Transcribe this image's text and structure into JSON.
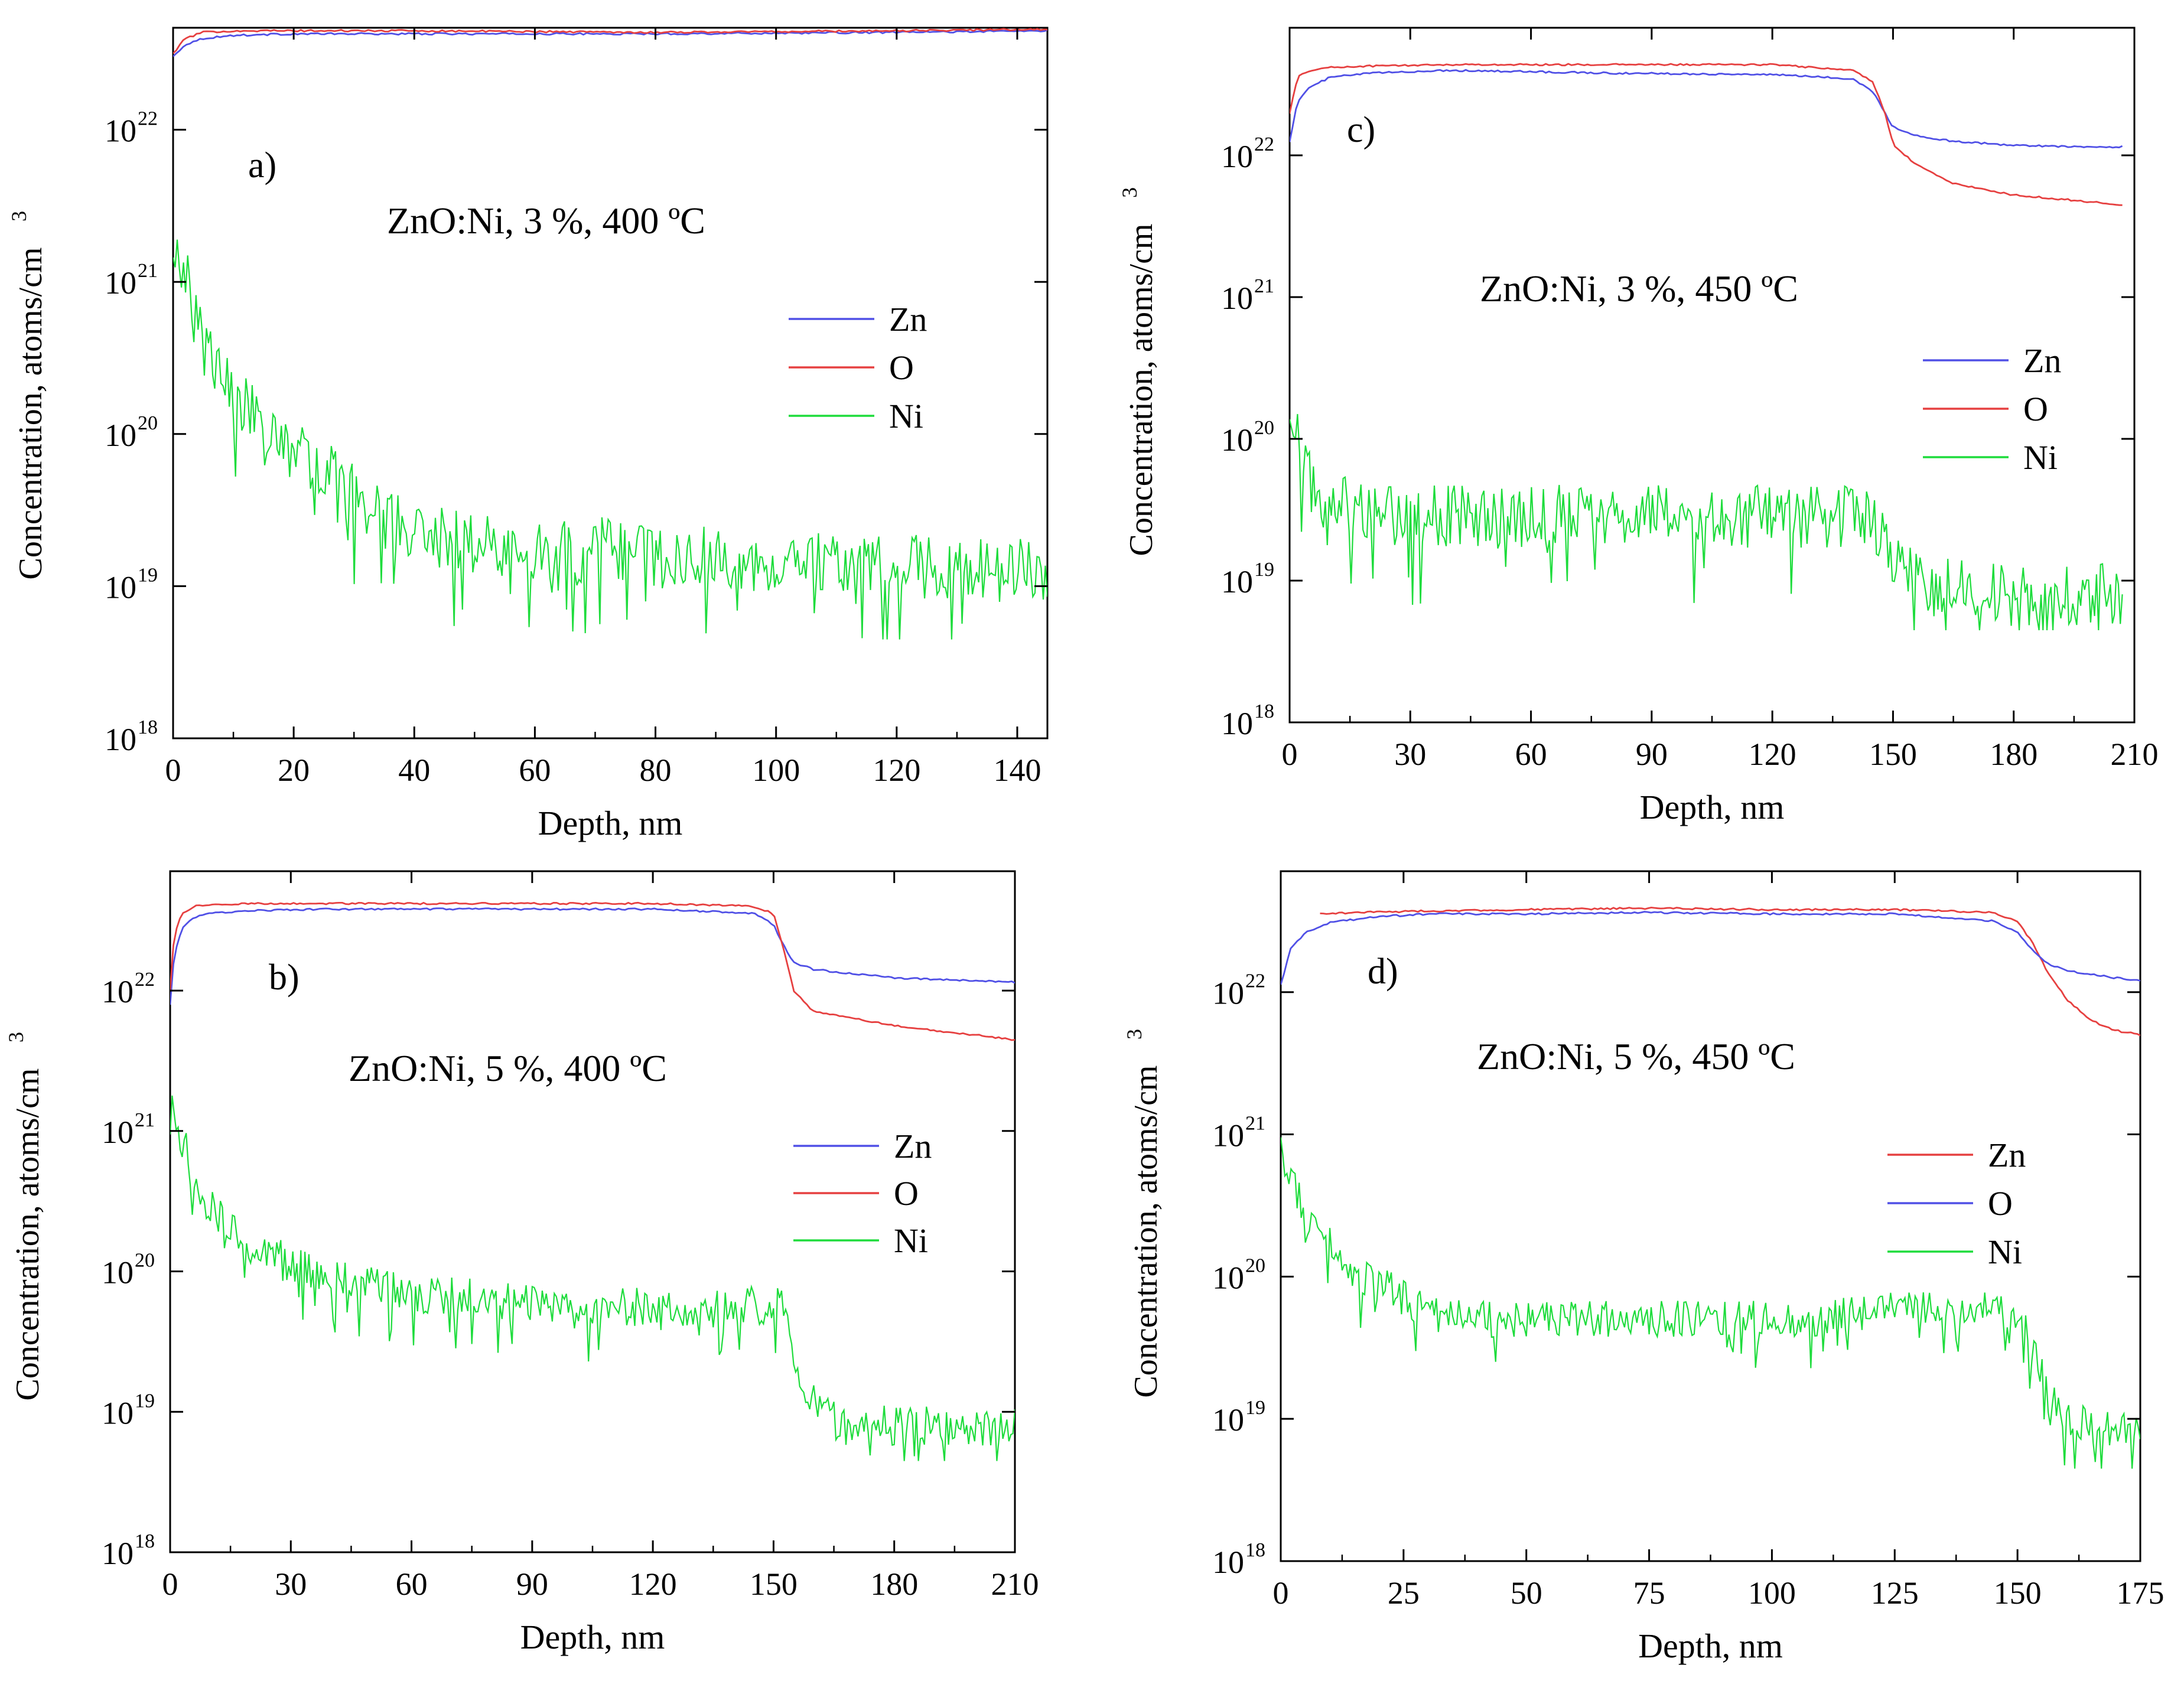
{
  "chart_data": [
    {
      "type": "line",
      "panel_label": "a)",
      "annotation": "ZnO:Ni, 3 %, 400 ºC",
      "xlabel": "Depth, nm",
      "ylabel": "Concentration, atoms/cm",
      "ylabel_sup": "3",
      "xlim": [
        0,
        145
      ],
      "xticks": [
        0,
        20,
        40,
        60,
        80,
        100,
        120,
        140
      ],
      "yscale": "log",
      "ylim_exp": [
        18,
        22.67
      ],
      "yticks": [
        {
          "base": "10",
          "exp": "18"
        },
        {
          "base": "10",
          "exp": "19"
        },
        {
          "base": "10",
          "exp": "20"
        },
        {
          "base": "10",
          "exp": "21"
        },
        {
          "base": "10",
          "exp": "22"
        }
      ],
      "legend": [
        {
          "name": "Zn",
          "color": "#5050e6"
        },
        {
          "name": "O",
          "color": "#e64040"
        },
        {
          "name": "Ni",
          "color": "#1edc3c"
        }
      ],
      "series": [
        {
          "name": "Zn",
          "color": "#5050e6",
          "x": [
            0,
            2,
            5,
            10,
            20,
            40,
            80,
            120,
            145
          ],
          "log10_values": [
            22.48,
            22.56,
            22.6,
            22.62,
            22.63,
            22.63,
            22.63,
            22.64,
            22.65
          ]
        },
        {
          "name": "O",
          "color": "#e64040",
          "x": [
            0,
            2,
            5,
            10,
            20,
            40,
            80,
            120,
            145
          ],
          "log10_values": [
            22.5,
            22.6,
            22.64,
            22.65,
            22.65,
            22.65,
            22.64,
            22.65,
            22.66
          ]
        },
        {
          "name": "Ni",
          "color": "#1edc3c",
          "x": [
            0,
            1,
            3,
            5,
            8,
            10,
            12,
            15,
            18,
            20,
            25,
            30,
            33,
            36,
            40,
            45,
            50,
            60,
            70,
            80,
            90,
            100,
            110,
            120,
            130,
            140,
            145
          ],
          "log10_values": [
            21.1,
            21.15,
            20.9,
            20.6,
            20.4,
            20.25,
            20.2,
            20.05,
            19.95,
            19.9,
            19.75,
            19.6,
            19.5,
            19.45,
            19.35,
            19.3,
            19.3,
            19.25,
            19.25,
            19.2,
            19.2,
            19.15,
            19.15,
            19.15,
            19.1,
            19.1,
            19.1
          ],
          "noise_amp": 0.42
        }
      ]
    },
    {
      "type": "line",
      "panel_label": "c)",
      "annotation": "ZnO:Ni, 3 %, 450 ºC",
      "xlabel": "Depth, nm",
      "ylabel": "Concentration, atoms/cm",
      "ylabel_sup": "3",
      "xlim": [
        0,
        210
      ],
      "xticks": [
        0,
        30,
        60,
        90,
        120,
        150,
        180,
        210
      ],
      "yscale": "log",
      "ylim_exp": [
        18,
        22.9
      ],
      "yticks": [
        {
          "base": "10",
          "exp": "18"
        },
        {
          "base": "10",
          "exp": "19"
        },
        {
          "base": "10",
          "exp": "20"
        },
        {
          "base": "10",
          "exp": "21"
        },
        {
          "base": "10",
          "exp": "22"
        }
      ],
      "legend": [
        {
          "name": "Zn",
          "color": "#5050e6"
        },
        {
          "name": "O",
          "color": "#e64040"
        },
        {
          "name": "Ni",
          "color": "#1edc3c"
        }
      ],
      "series": [
        {
          "name": "Zn",
          "color": "#5050e6",
          "x": [
            0,
            2,
            5,
            10,
            20,
            40,
            80,
            120,
            140,
            145,
            148,
            150,
            155,
            165,
            180,
            200,
            207
          ],
          "log10_values": [
            22.1,
            22.38,
            22.48,
            22.55,
            22.58,
            22.6,
            22.58,
            22.57,
            22.54,
            22.45,
            22.3,
            22.2,
            22.14,
            22.1,
            22.07,
            22.06,
            22.06
          ]
        },
        {
          "name": "O",
          "color": "#e64040",
          "x": [
            0,
            2,
            5,
            10,
            20,
            40,
            80,
            120,
            140,
            145,
            148,
            150,
            155,
            165,
            180,
            200,
            207
          ],
          "log10_values": [
            22.3,
            22.55,
            22.6,
            22.62,
            22.63,
            22.64,
            22.64,
            22.64,
            22.6,
            22.52,
            22.3,
            22.08,
            21.95,
            21.8,
            21.72,
            21.67,
            21.65
          ]
        },
        {
          "name": "Ni",
          "color": "#1edc3c",
          "x": [
            0,
            1,
            3,
            5,
            10,
            15,
            20,
            30,
            60,
            90,
            120,
            145,
            148,
            152,
            160,
            180,
            207
          ],
          "log10_values": [
            20.35,
            20.1,
            19.9,
            19.7,
            19.55,
            19.5,
            19.45,
            19.45,
            19.45,
            19.45,
            19.45,
            19.45,
            19.3,
            19.05,
            18.95,
            18.9,
            18.9
          ],
          "noise_amp": 0.45
        }
      ]
    },
    {
      "type": "line",
      "panel_label": "b)",
      "annotation": "ZnO:Ni, 5 %, 400 ºC",
      "xlabel": "Depth, nm",
      "ylabel": "Concentration, atoms/cm",
      "ylabel_sup": "3",
      "xlim": [
        0,
        210
      ],
      "xticks": [
        0,
        30,
        60,
        90,
        120,
        150,
        180,
        210
      ],
      "yscale": "log",
      "ylim_exp": [
        18,
        22.85
      ],
      "yticks": [
        {
          "base": "10",
          "exp": "18"
        },
        {
          "base": "10",
          "exp": "19"
        },
        {
          "base": "10",
          "exp": "20"
        },
        {
          "base": "10",
          "exp": "21"
        },
        {
          "base": "10",
          "exp": "22"
        }
      ],
      "legend": [
        {
          "name": "Zn",
          "color": "#5050e6"
        },
        {
          "name": "O",
          "color": "#e64040"
        },
        {
          "name": "Ni",
          "color": "#1edc3c"
        }
      ],
      "series": [
        {
          "name": "Zn",
          "color": "#5050e6",
          "x": [
            0,
            1,
            3,
            6,
            10,
            20,
            40,
            80,
            120,
            145,
            150,
            152,
            155,
            160,
            180,
            210
          ],
          "log10_values": [
            21.9,
            22.25,
            22.45,
            22.52,
            22.55,
            22.57,
            22.58,
            22.58,
            22.58,
            22.55,
            22.47,
            22.35,
            22.2,
            22.15,
            22.09,
            22.06
          ]
        },
        {
          "name": "O",
          "color": "#e64040",
          "x": [
            0,
            1,
            3,
            6,
            10,
            20,
            40,
            80,
            120,
            145,
            150,
            152,
            155,
            160,
            180,
            210
          ],
          "log10_values": [
            22.0,
            22.4,
            22.55,
            22.6,
            22.61,
            22.62,
            22.62,
            22.62,
            22.62,
            22.6,
            22.55,
            22.35,
            22.0,
            21.85,
            21.75,
            21.65
          ]
        },
        {
          "name": "Ni",
          "color": "#1edc3c",
          "x": [
            0,
            1,
            3,
            5,
            8,
            12,
            16,
            20,
            30,
            40,
            50,
            60,
            80,
            100,
            120,
            145,
            152,
            154,
            158,
            165,
            180,
            210
          ],
          "log10_values": [
            21.25,
            21.05,
            20.95,
            20.75,
            20.55,
            20.4,
            20.3,
            20.2,
            20.05,
            19.95,
            19.9,
            19.85,
            19.8,
            19.75,
            19.75,
            19.75,
            19.75,
            19.5,
            19.15,
            18.95,
            18.9,
            18.9
          ],
          "noise_amp": 0.28
        }
      ]
    },
    {
      "type": "line",
      "panel_label": "d)",
      "annotation": "ZnO:Ni, 5 %, 450 ºC",
      "xlabel": "Depth, nm",
      "ylabel": "Concentration, atoms/cm",
      "ylabel_sup": "3",
      "xlim": [
        0,
        175
      ],
      "xticks": [
        0,
        25,
        50,
        75,
        100,
        125,
        150,
        175
      ],
      "yscale": "log",
      "ylim_exp": [
        18,
        22.85
      ],
      "yticks": [
        {
          "base": "10",
          "exp": "18"
        },
        {
          "base": "10",
          "exp": "19"
        },
        {
          "base": "10",
          "exp": "20"
        },
        {
          "base": "10",
          "exp": "21"
        },
        {
          "base": "10",
          "exp": "22"
        }
      ],
      "legend": [
        {
          "name": "Zn",
          "color": "#e64040"
        },
        {
          "name": "O",
          "color": "#5050e6"
        },
        {
          "name": "Ni",
          "color": "#1edc3c"
        }
      ],
      "series": [
        {
          "name": "Zn",
          "color": "#e64040",
          "x": [
            8,
            15,
            30,
            50,
            75,
            100,
            125,
            145,
            150,
            153,
            156,
            160,
            165,
            170,
            175
          ],
          "log10_values": [
            22.55,
            22.56,
            22.57,
            22.58,
            22.59,
            22.58,
            22.58,
            22.56,
            22.5,
            22.35,
            22.15,
            21.95,
            21.8,
            21.73,
            21.7
          ]
        },
        {
          "name": "O",
          "color": "#5050e6",
          "x": [
            0,
            2,
            5,
            10,
            20,
            30,
            50,
            75,
            100,
            125,
            145,
            150,
            153,
            156,
            160,
            170,
            175
          ],
          "log10_values": [
            22.05,
            22.3,
            22.42,
            22.49,
            22.53,
            22.55,
            22.55,
            22.56,
            22.55,
            22.55,
            22.5,
            22.42,
            22.3,
            22.2,
            22.15,
            22.1,
            22.08
          ]
        },
        {
          "name": "Ni",
          "color": "#1edc3c",
          "x": [
            0,
            1,
            3,
            5,
            8,
            12,
            16,
            20,
            25,
            30,
            40,
            60,
            80,
            100,
            120,
            145,
            150,
            154,
            158,
            165,
            175
          ],
          "log10_values": [
            20.9,
            20.75,
            20.6,
            20.45,
            20.3,
            20.15,
            20.0,
            19.95,
            19.85,
            19.75,
            19.7,
            19.7,
            19.7,
            19.7,
            19.75,
            19.8,
            19.75,
            19.4,
            19.05,
            18.95,
            18.9
          ],
          "noise_amp": 0.26
        }
      ]
    }
  ]
}
